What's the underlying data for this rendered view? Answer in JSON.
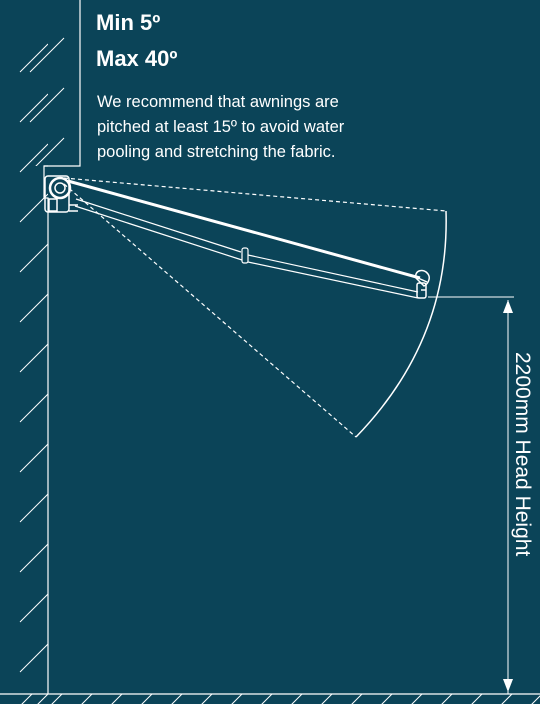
{
  "headings": {
    "min": "Min 5º",
    "max": "Max 40º"
  },
  "recommendation": {
    "lines": [
      "We recommend that awnings are",
      "pitched at least 15º to avoid water",
      "pooling and stretching the fabric."
    ]
  },
  "dimension": {
    "label": "2200mm Head Height"
  },
  "colors": {
    "background": "#0b4458",
    "lines": "#ffffff"
  }
}
